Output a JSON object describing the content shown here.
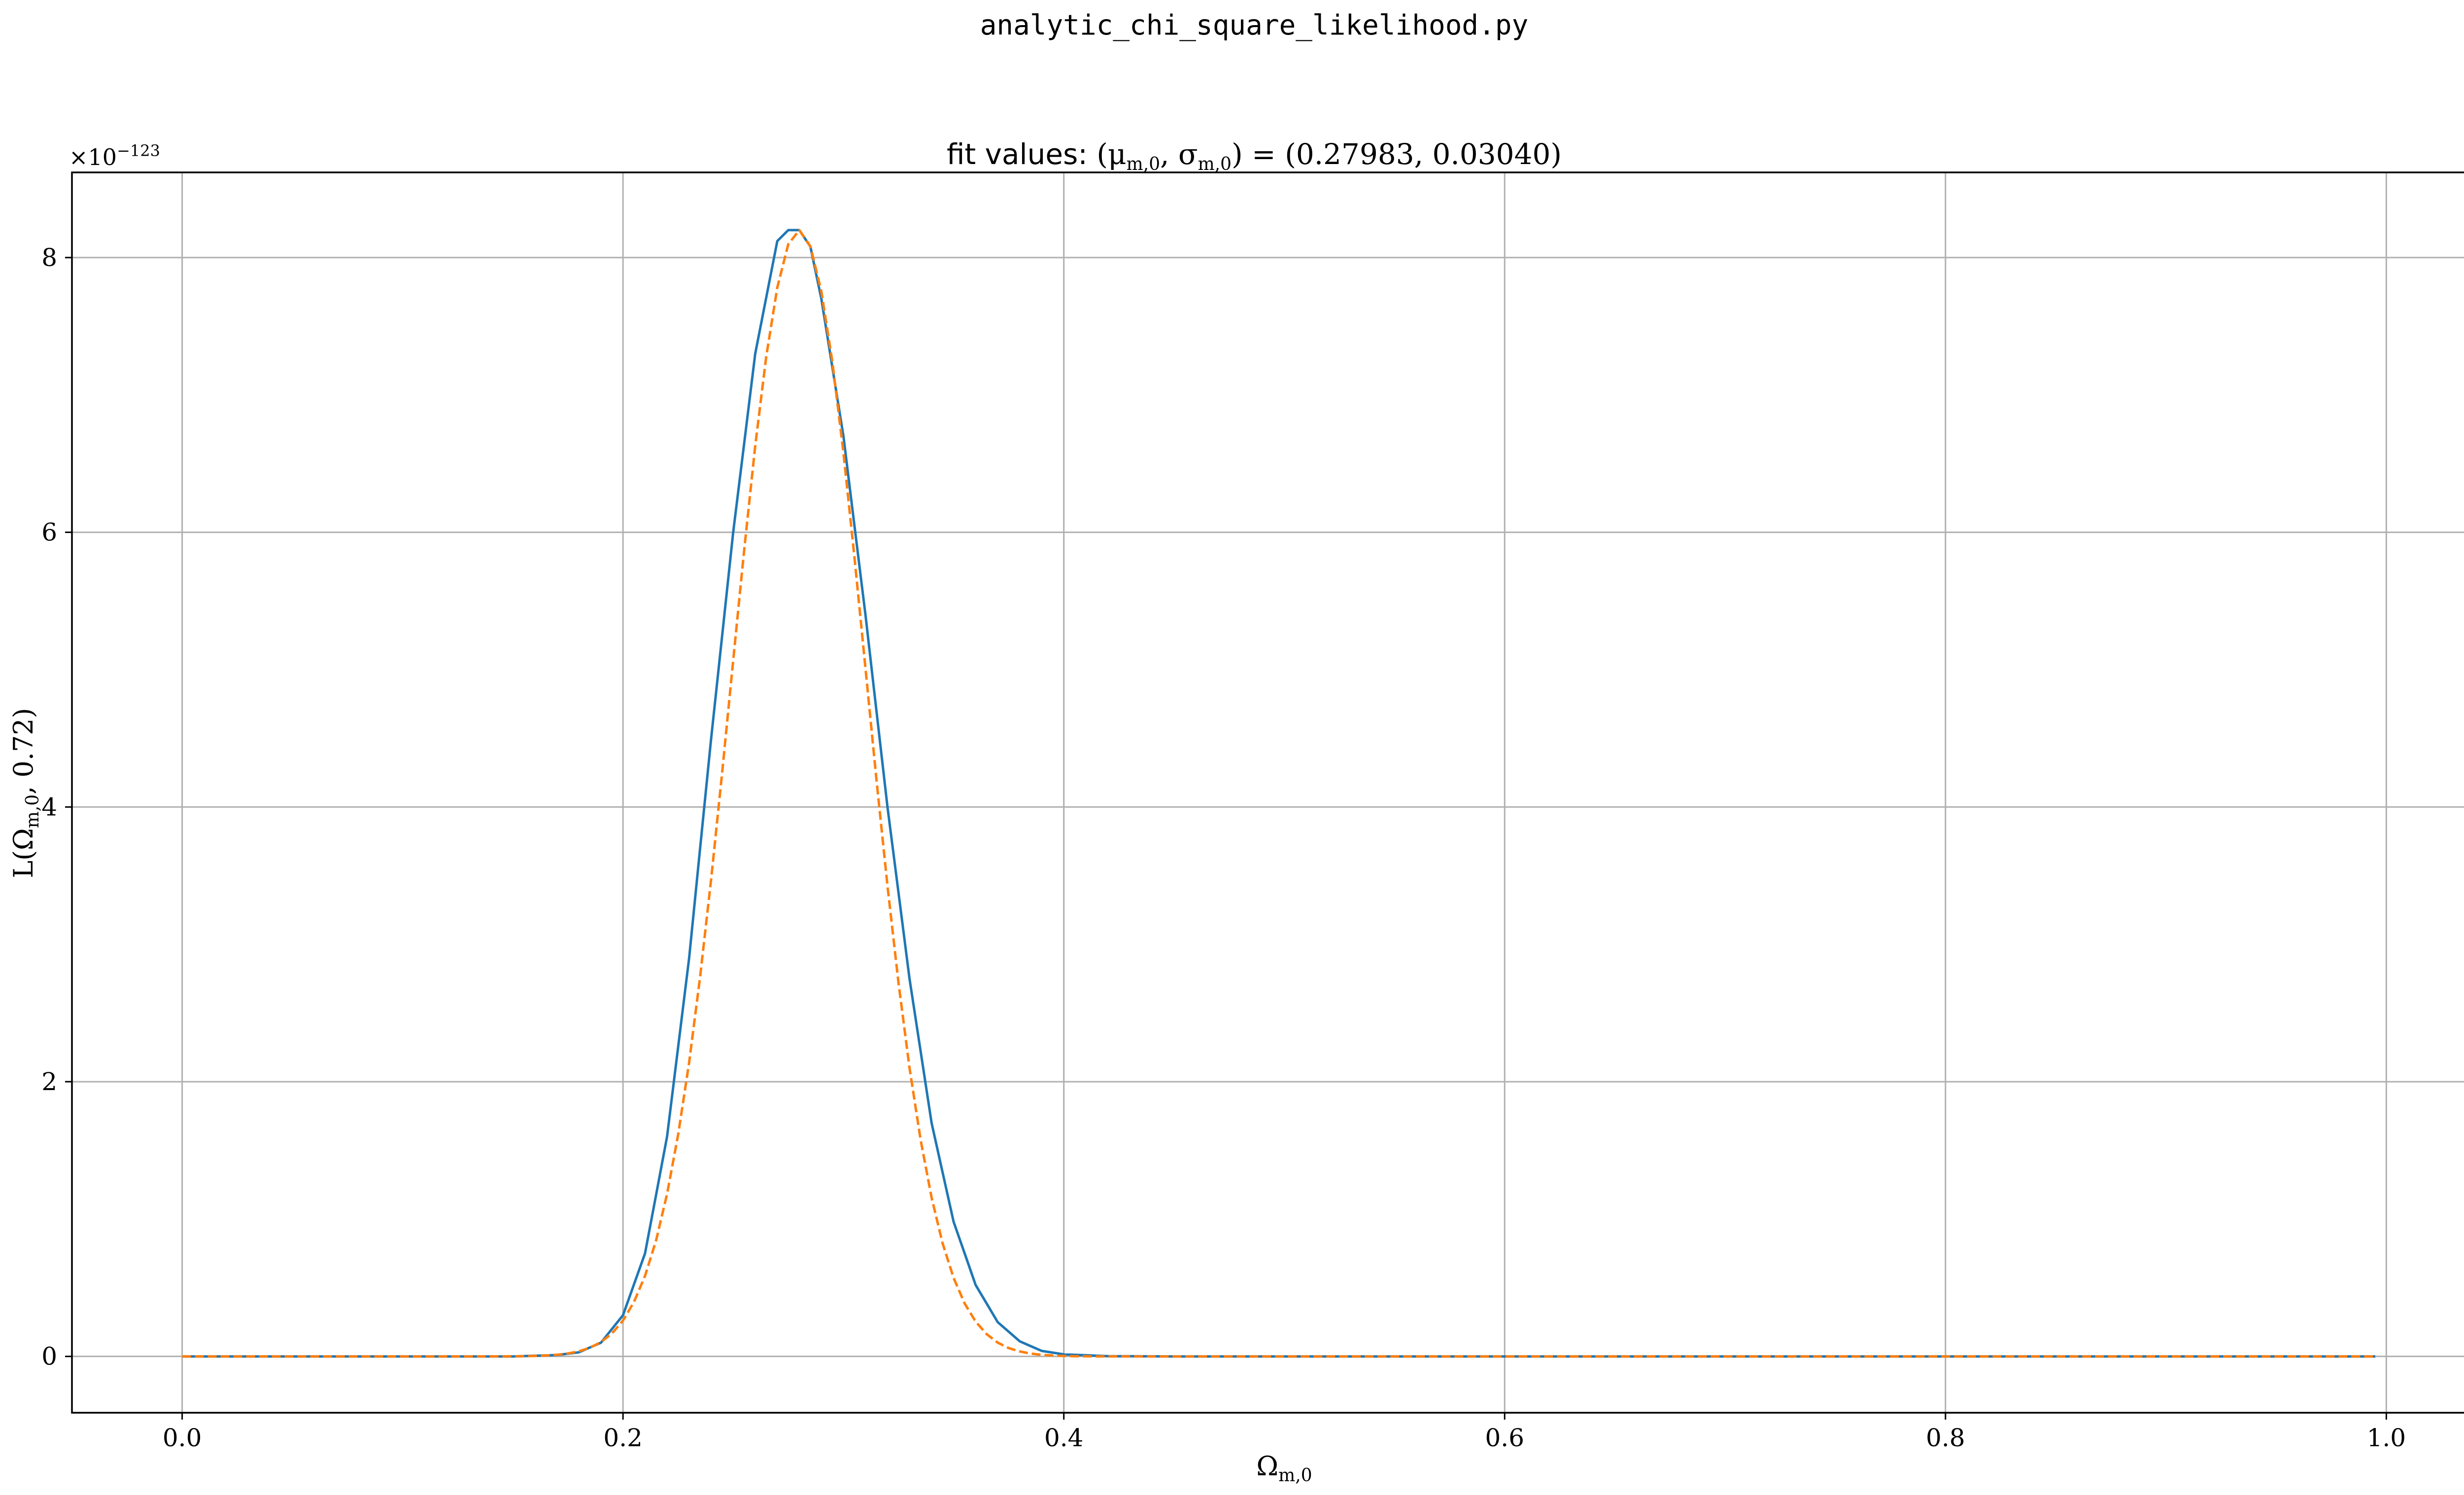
{
  "figure": {
    "suptitle": "analytic_chi_square_likelihood.py"
  },
  "chart_data": {
    "type": "line",
    "title_prefix": "fit values: ",
    "title_math": "(μ",
    "title_values": "(0.27983, 0.03040)",
    "xlabel": "Ω",
    "xlabel_sub": "m,0",
    "ylabel": "L(Ω",
    "ylabel_sub": "m,0",
    "ylabel_tail": ", 0.72)",
    "offset_text": "×10",
    "offset_exponent": "−123",
    "xlim": [
      -0.05,
      1.05
    ],
    "ylim": [
      -0.41,
      8.62
    ],
    "xticks": [
      0.0,
      0.2,
      0.4,
      0.6,
      0.8,
      1.0
    ],
    "xtick_labels": [
      "0.0",
      "0.2",
      "0.4",
      "0.6",
      "0.8",
      "1.0"
    ],
    "yticks": [
      0,
      2,
      4,
      6,
      8
    ],
    "ytick_labels": [
      "0",
      "2",
      "4",
      "6",
      "8"
    ],
    "grid": true,
    "x_range": [
      0.0,
      0.995
    ],
    "x_step": 0.005,
    "y_scale_note": "values in units of 1e-123",
    "series": [
      {
        "color": "#1f77b4",
        "style": "solid",
        "model": "sampled likelihood",
        "x": [
          0.0,
          0.1,
          0.15,
          0.17,
          0.18,
          0.19,
          0.2,
          0.21,
          0.22,
          0.23,
          0.24,
          0.25,
          0.26,
          0.27,
          0.275,
          0.28,
          0.285,
          0.29,
          0.3,
          0.31,
          0.32,
          0.33,
          0.34,
          0.35,
          0.36,
          0.37,
          0.38,
          0.39,
          0.4,
          0.42,
          0.45,
          0.5,
          0.6,
          0.8,
          0.995
        ],
        "y": [
          0.0,
          0.0,
          0.0,
          0.01,
          0.03,
          0.1,
          0.3,
          0.75,
          1.6,
          2.9,
          4.5,
          6.0,
          7.3,
          8.12,
          8.2,
          8.2,
          8.08,
          7.7,
          6.7,
          5.4,
          4.0,
          2.75,
          1.7,
          0.98,
          0.52,
          0.25,
          0.11,
          0.04,
          0.015,
          0.002,
          0.0,
          0.0,
          0.0,
          0.0,
          0.0
        ]
      },
      {
        "color": "#ff7f0e",
        "style": "dashed",
        "model": "gaussian fit",
        "mu": 0.27983,
        "sigma": 0.0304,
        "amplitude": 8.2
      }
    ]
  }
}
